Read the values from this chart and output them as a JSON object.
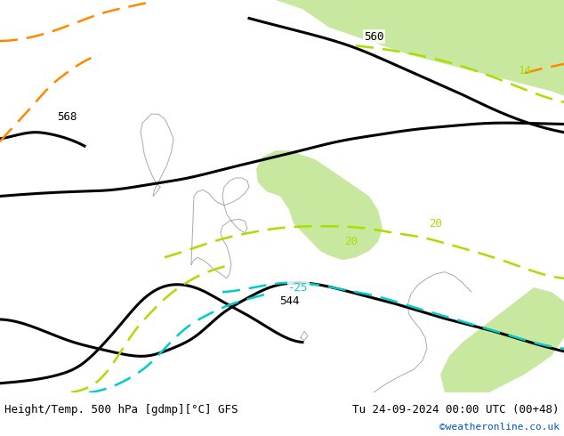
{
  "title_left": "Height/Temp. 500 hPa [gdmp][°C] GFS",
  "title_right": "Tu 24-09-2024 00:00 UTC (00+48)",
  "credit": "©weatheronline.co.uk",
  "bg_color": "#e8e8e8",
  "land_color": "#c8e6c8",
  "coast_color": "#aaaaaa",
  "green_land_color": "#b8e090",
  "footer_bg": "#ffffff",
  "contour_black_color": "#000000",
  "contour_cyan_color": "#00cccc",
  "contour_lime_color": "#aadd00",
  "contour_orange_color": "#ff8800",
  "label_544": "544",
  "label_560": "560",
  "label_568": "568",
  "label_neg25": "-25",
  "label_20_1": "20",
  "label_20_2": "20",
  "label_14": "14",
  "figsize": [
    6.34,
    4.9
  ],
  "dpi": 100
}
